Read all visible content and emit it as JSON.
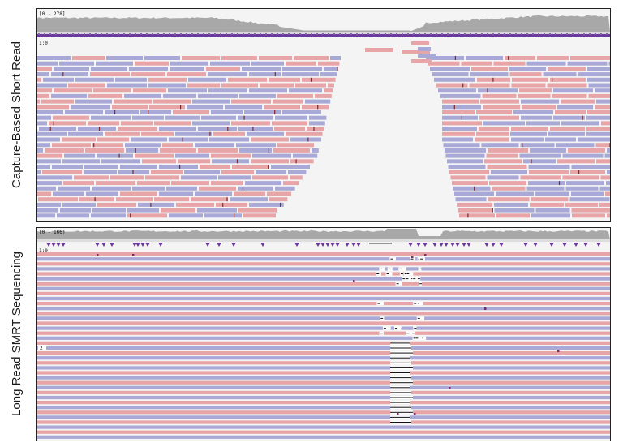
{
  "panels": [
    {
      "id": "short-read",
      "label": "Capture-Based Short Read",
      "coverage_scale": "[0 - 278]",
      "track_label": "1:0"
    },
    {
      "id": "long-read",
      "label": "Long Read SMRT Sequencing",
      "coverage_scale": "[0 - 166]",
      "track_label": "1:0",
      "marker_label": "2"
    }
  ],
  "colors": {
    "forward_read": "#e8a5a8",
    "reverse_read": "#a9a9d8",
    "coverage": "#a8a8a8",
    "feature_track": "#6a3a9a",
    "mismatch_marker": "#7a2a6a",
    "indel": "#111111"
  }
}
